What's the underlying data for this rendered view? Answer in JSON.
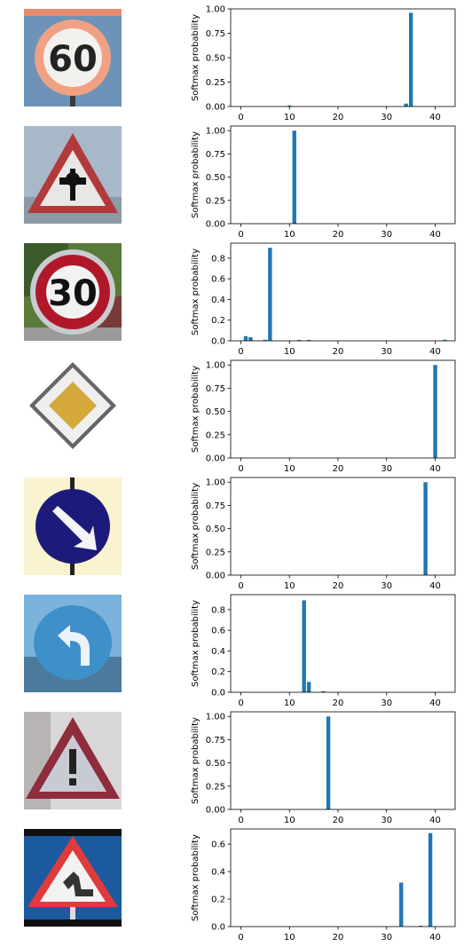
{
  "colors": {
    "bar": "#1f77b4",
    "axis": "#000000"
  },
  "chart_data": [
    {
      "type": "bar",
      "image_icon": "speed-limit-60-sign",
      "ylabel": "Softmax probability",
      "xlim": [
        -2.1,
        44.1
      ],
      "ylim": [
        0,
        1.0
      ],
      "xticks": [
        0,
        10,
        20,
        30,
        40
      ],
      "yticks": [
        0.0,
        0.25,
        0.5,
        0.75,
        1.0
      ],
      "bars": [
        {
          "x": 10,
          "y": 0.01
        },
        {
          "x": 34,
          "y": 0.03
        },
        {
          "x": 35,
          "y": 0.96
        }
      ]
    },
    {
      "type": "bar",
      "image_icon": "right-of-way-at-next-intersection-sign",
      "ylabel": "Softmax probability",
      "xlim": [
        -2.1,
        44.1
      ],
      "ylim": [
        0,
        1.05
      ],
      "xticks": [
        0,
        10,
        20,
        30,
        40
      ],
      "yticks": [
        0.0,
        0.25,
        0.5,
        0.75,
        1.0
      ],
      "bars": [
        {
          "x": 11,
          "y": 1.0
        }
      ]
    },
    {
      "type": "bar",
      "image_icon": "speed-limit-30-sign",
      "ylabel": "Softmax probability",
      "xlim": [
        -2.1,
        44.1
      ],
      "ylim": [
        0,
        0.945
      ],
      "xticks": [
        0,
        10,
        20,
        30,
        40
      ],
      "yticks": [
        0.0,
        0.2,
        0.4,
        0.6,
        0.8
      ],
      "bars": [
        {
          "x": 1,
          "y": 0.045
        },
        {
          "x": 2,
          "y": 0.035
        },
        {
          "x": 5,
          "y": 0.01
        },
        {
          "x": 6,
          "y": 0.9
        },
        {
          "x": 12,
          "y": 0.008
        },
        {
          "x": 14,
          "y": 0.008
        },
        {
          "x": 42,
          "y": 0.01
        }
      ]
    },
    {
      "type": "bar",
      "image_icon": "priority-road-sign",
      "ylabel": "Softmax probability",
      "xlim": [
        -2.1,
        44.1
      ],
      "ylim": [
        0,
        1.05
      ],
      "xticks": [
        0,
        10,
        20,
        30,
        40
      ],
      "yticks": [
        0.0,
        0.25,
        0.5,
        0.75,
        1.0
      ],
      "bars": [
        {
          "x": 40,
          "y": 1.0
        }
      ]
    },
    {
      "type": "bar",
      "image_icon": "keep-right-sign",
      "ylabel": "Softmax probability",
      "xlim": [
        -2.1,
        44.1
      ],
      "ylim": [
        0,
        1.05
      ],
      "xticks": [
        0,
        10,
        20,
        30,
        40
      ],
      "yticks": [
        0.0,
        0.25,
        0.5,
        0.75,
        1.0
      ],
      "bars": [
        {
          "x": 38,
          "y": 1.0
        }
      ]
    },
    {
      "type": "bar",
      "image_icon": "turn-left-ahead-sign",
      "ylabel": "Softmax probability",
      "xlim": [
        -2.1,
        44.1
      ],
      "ylim": [
        0,
        0.945
      ],
      "xticks": [
        0,
        10,
        20,
        30,
        40
      ],
      "yticks": [
        0.0,
        0.2,
        0.4,
        0.6,
        0.8
      ],
      "bars": [
        {
          "x": 13,
          "y": 0.89
        },
        {
          "x": 14,
          "y": 0.1
        },
        {
          "x": 17,
          "y": 0.01
        }
      ]
    },
    {
      "type": "bar",
      "image_icon": "general-caution-sign",
      "ylabel": "Softmax probability",
      "xlim": [
        -2.1,
        44.1
      ],
      "ylim": [
        0,
        1.05
      ],
      "xticks": [
        0,
        10,
        20,
        30,
        40
      ],
      "yticks": [
        0.0,
        0.25,
        0.5,
        0.75,
        1.0
      ],
      "bars": [
        {
          "x": 18,
          "y": 1.0
        }
      ]
    },
    {
      "type": "bar",
      "image_icon": "road-work-sign",
      "ylabel": "Softmax probability",
      "xlim": [
        -2.1,
        44.1
      ],
      "ylim": [
        0,
        0.71
      ],
      "xticks": [
        0,
        10,
        20,
        30,
        40
      ],
      "yticks": [
        0.0,
        0.2,
        0.4,
        0.6
      ],
      "bars": [
        {
          "x": 33,
          "y": 0.32
        },
        {
          "x": 37,
          "y": 0.005
        },
        {
          "x": 39,
          "y": 0.68
        }
      ]
    }
  ]
}
